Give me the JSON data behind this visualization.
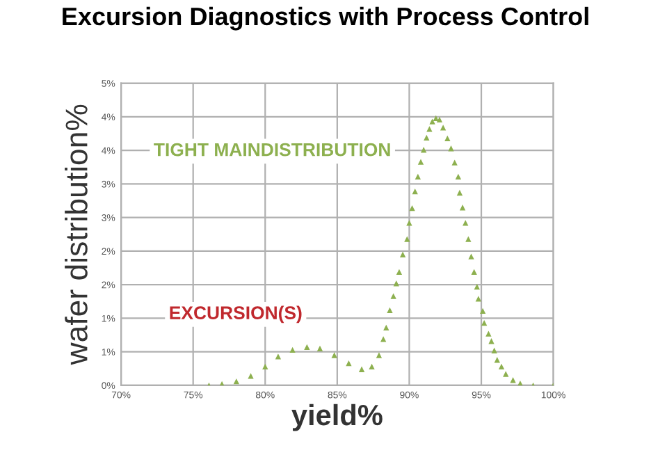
{
  "chart_data": {
    "type": "scatter",
    "title": "Excursion Diagnostics with Process Control",
    "xlabel": "yield%",
    "ylabel": "wafer distribution%",
    "annotations": [
      "TIGHT MAINDISTRIBUTION",
      "EXCURSION(S)"
    ],
    "series": [
      {
        "color": "#8db04f",
        "x": [
          76.1,
          77.0,
          78.0,
          79.0,
          80.0,
          80.9,
          81.9,
          82.9,
          83.8,
          84.8,
          85.8,
          86.7,
          87.4,
          87.9,
          88.2,
          88.4,
          88.65,
          88.9,
          89.1,
          89.3,
          89.55,
          89.85,
          90.0,
          90.2,
          90.4,
          90.6,
          90.8,
          91.0,
          91.2,
          91.4,
          91.6,
          91.85,
          92.1,
          92.35,
          92.65,
          92.9,
          93.15,
          93.4,
          93.5,
          93.7,
          93.9,
          94.1,
          94.3,
          94.5,
          94.7,
          94.8,
          95.1,
          95.2,
          95.5,
          95.7,
          95.9,
          96.1,
          96.4,
          96.7,
          97.2,
          97.7,
          98.6,
          100.0
        ],
        "values": [
          0.0,
          0.02,
          0.06,
          0.14,
          0.28,
          0.43,
          0.53,
          0.57,
          0.55,
          0.45,
          0.33,
          0.24,
          0.28,
          0.45,
          0.69,
          0.86,
          1.12,
          1.33,
          1.52,
          1.69,
          1.95,
          2.18,
          2.42,
          2.64,
          2.89,
          3.11,
          3.33,
          3.51,
          3.69,
          3.82,
          3.93,
          3.98,
          3.96,
          3.84,
          3.68,
          3.53,
          3.32,
          3.11,
          2.87,
          2.65,
          2.42,
          2.18,
          1.92,
          1.69,
          1.47,
          1.29,
          1.11,
          0.93,
          0.77,
          0.66,
          0.52,
          0.38,
          0.28,
          0.17,
          0.08,
          0.03,
          0.0,
          0.0
        ]
      }
    ],
    "xlim": [
      70,
      100
    ],
    "ylim": [
      0,
      4.5
    ],
    "xticks": [
      {
        "value": 70,
        "label": "70%"
      },
      {
        "value": 75,
        "label": "75%"
      },
      {
        "value": 80,
        "label": "80%"
      },
      {
        "value": 85,
        "label": "85%"
      },
      {
        "value": 90,
        "label": "90%"
      },
      {
        "value": 95,
        "label": "95%"
      },
      {
        "value": 100,
        "label": "100%"
      }
    ],
    "yticks": [
      {
        "value": 0,
        "label": "0%"
      },
      {
        "value": 0.5,
        "label": "1%"
      },
      {
        "value": 1,
        "label": "1%"
      },
      {
        "value": 1.5,
        "label": "2%"
      },
      {
        "value": 2,
        "label": "2%"
      },
      {
        "value": 2.5,
        "label": "3%"
      },
      {
        "value": 3,
        "label": "3%"
      },
      {
        "value": 3.5,
        "label": "4%"
      },
      {
        "value": 4,
        "label": "4%"
      },
      {
        "value": 4.5,
        "label": "5%"
      }
    ],
    "grid": true,
    "marker": "triangle"
  }
}
